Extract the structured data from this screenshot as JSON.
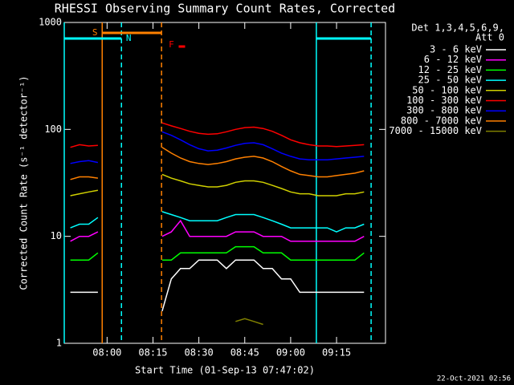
{
  "chart_data": {
    "type": "line",
    "title": "RHESSI Observing Summary Count Rates, Corrected",
    "x_label": "Start Time (01-Sep-13 07:47:02)",
    "y_label": "Corrected Count Rate (s⁻¹ detector⁻¹)",
    "legend_title": [
      "Det 1,3,4,5,6,9,",
      "Att 0"
    ],
    "footer": "22-Oct-2021 02:56",
    "log_scale": true,
    "xlim": [
      466,
      571
    ],
    "ylim": [
      1,
      1000
    ],
    "xticks": [
      {
        "value": 480,
        "label": "08:00"
      },
      {
        "value": 495,
        "label": "08:15"
      },
      {
        "value": 510,
        "label": "08:30"
      },
      {
        "value": 525,
        "label": "08:45"
      },
      {
        "value": 540,
        "label": "09:00"
      },
      {
        "value": 555,
        "label": "09:15"
      }
    ],
    "yticks": [
      1,
      10,
      100,
      1000
    ],
    "x": [
      468,
      471,
      474,
      477,
      480,
      483,
      486,
      489,
      492,
      495,
      498,
      501,
      504,
      507,
      510,
      513,
      516,
      519,
      522,
      525,
      528,
      531,
      534,
      537,
      540,
      543,
      546,
      549,
      552,
      555,
      558,
      561,
      564
    ],
    "series": [
      {
        "name": "3 - 6 keV",
        "color": "#000000",
        "values": [
          3,
          3,
          3,
          3,
          null,
          null,
          null,
          null,
          null,
          null,
          2,
          4,
          5,
          5,
          6,
          6,
          6,
          5,
          6,
          6,
          6,
          5,
          5,
          4,
          4,
          3,
          3,
          3,
          3,
          3,
          3,
          3,
          3
        ]
      },
      {
        "name": "6 - 12 keV",
        "color": "#ff00ff",
        "values": [
          9,
          10,
          10,
          11,
          null,
          null,
          null,
          null,
          null,
          null,
          10,
          11,
          14,
          10,
          10,
          10,
          10,
          10,
          11,
          11,
          11,
          10,
          10,
          10,
          9,
          9,
          9,
          9,
          9,
          9,
          9,
          9,
          10
        ]
      },
      {
        "name": "12 - 25 keV",
        "color": "#00ff00",
        "values": [
          6,
          6,
          6,
          7,
          null,
          null,
          null,
          null,
          null,
          null,
          6,
          6,
          7,
          7,
          7,
          7,
          7,
          7,
          8,
          8,
          8,
          7,
          7,
          7,
          6,
          6,
          6,
          6,
          6,
          6,
          6,
          6,
          7
        ]
      },
      {
        "name": "25 - 50 keV",
        "color": "#00ffff",
        "values": [
          12,
          13,
          13,
          15,
          null,
          null,
          null,
          null,
          null,
          null,
          17,
          16,
          15,
          14,
          14,
          14,
          14,
          15,
          16,
          16,
          16,
          15,
          14,
          13,
          12,
          12,
          12,
          12,
          12,
          11,
          12,
          12,
          13
        ]
      },
      {
        "name": "50 - 100 keV",
        "color": "#d0d000",
        "values": [
          24,
          25,
          26,
          27,
          null,
          null,
          null,
          null,
          null,
          null,
          38,
          35,
          33,
          31,
          30,
          29,
          29,
          30,
          32,
          33,
          33,
          32,
          30,
          28,
          26,
          25,
          25,
          24,
          24,
          24,
          25,
          25,
          26
        ]
      },
      {
        "name": "100 - 300 keV",
        "color": "#ff0000",
        "values": [
          68,
          72,
          70,
          71,
          null,
          null,
          null,
          null,
          null,
          null,
          115,
          108,
          102,
          96,
          92,
          90,
          91,
          95,
          100,
          104,
          105,
          102,
          96,
          88,
          80,
          75,
          72,
          70,
          70,
          69,
          70,
          71,
          72
        ]
      },
      {
        "name": "300 - 800 keV",
        "color": "#0000ff",
        "values": [
          48,
          50,
          51,
          49,
          null,
          null,
          null,
          null,
          null,
          null,
          95,
          88,
          80,
          72,
          66,
          63,
          64,
          67,
          71,
          74,
          75,
          72,
          66,
          60,
          56,
          53,
          52,
          52,
          52,
          53,
          54,
          55,
          56
        ]
      },
      {
        "name": "800 - 7000 keV",
        "color": "#ff8000",
        "values": [
          34,
          36,
          36,
          35,
          null,
          null,
          null,
          null,
          null,
          null,
          68,
          60,
          54,
          50,
          48,
          47,
          48,
          50,
          53,
          55,
          56,
          54,
          50,
          45,
          41,
          38,
          37,
          36,
          36,
          37,
          38,
          39,
          41
        ]
      },
      {
        "name": "7000 - 15000 keV",
        "color": "#808000",
        "values": [
          null,
          null,
          null,
          null,
          null,
          null,
          null,
          null,
          null,
          null,
          null,
          null,
          null,
          null,
          null,
          null,
          null,
          null,
          1.6,
          1.7,
          1.6,
          1.5,
          null,
          null,
          null,
          null,
          null,
          null,
          null,
          null,
          null,
          null,
          null
        ]
      }
    ],
    "vlines": [
      {
        "x": 466,
        "color": "#00ffff",
        "dashed": false
      },
      {
        "x": 478.4,
        "color": "#ff8000",
        "dashed": false
      },
      {
        "x": 484.7,
        "color": "#00ffff",
        "dashed": true
      },
      {
        "x": 497.8,
        "color": "#ff8000",
        "dashed": true
      },
      {
        "x": 548.4,
        "color": "#00ffff",
        "dashed": false
      },
      {
        "x": 566.3,
        "color": "#00ffff",
        "dashed": true
      }
    ],
    "flags": [
      {
        "label": "S",
        "start": 478.4,
        "end": 497.8,
        "color": "#ff8000"
      },
      {
        "label": "N",
        "start": 466,
        "end": 484.7,
        "color": "#00ffff"
      },
      {
        "start": 548.4,
        "end": 566.3,
        "color": "#00ffff"
      },
      {
        "label": "F",
        "start": 503.4,
        "end": 505.5,
        "color": "#ff0000"
      }
    ]
  }
}
